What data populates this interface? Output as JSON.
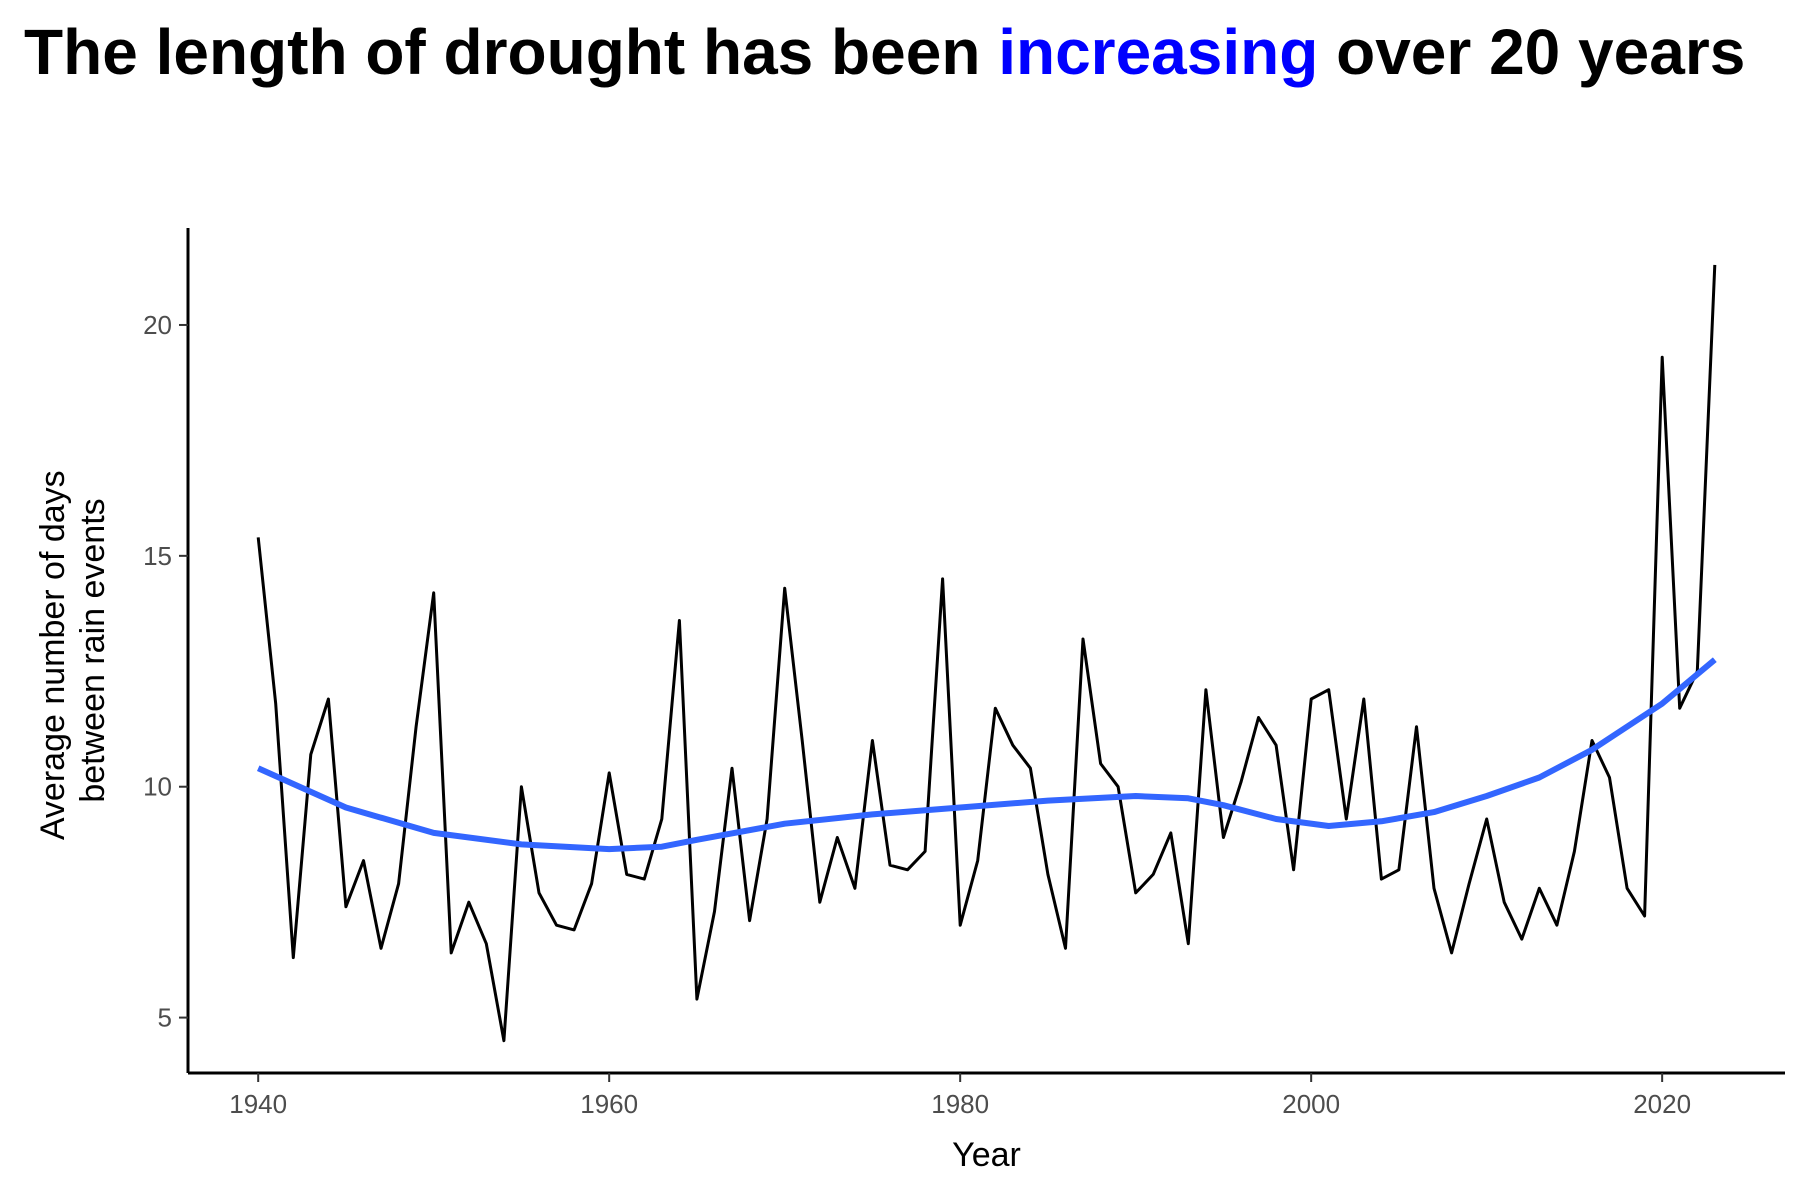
{
  "title": {
    "prefix": "The length of drought has been ",
    "highlight": "increasing",
    "suffix": " over 20 years",
    "highlight_color": "#0000ff"
  },
  "chart_data": {
    "type": "line",
    "xlabel": "Year",
    "ylabel_lines": [
      "Average number of days",
      "between rain events"
    ],
    "xlim": [
      1936,
      2027
    ],
    "ylim": [
      3.8,
      22.1
    ],
    "xticks": [
      1940,
      1960,
      1980,
      2000,
      2020
    ],
    "yticks": [
      5,
      10,
      15,
      20
    ],
    "grid": false,
    "legend": "none",
    "series": [
      {
        "color": "#000000",
        "x": [
          1940,
          1941,
          1942,
          1943,
          1944,
          1945,
          1946,
          1947,
          1948,
          1949,
          1950,
          1951,
          1952,
          1953,
          1954,
          1955,
          1956,
          1957,
          1958,
          1959,
          1960,
          1961,
          1962,
          1963,
          1964,
          1965,
          1966,
          1967,
          1968,
          1969,
          1970,
          1971,
          1972,
          1973,
          1974,
          1975,
          1976,
          1977,
          1978,
          1979,
          1980,
          1981,
          1982,
          1983,
          1984,
          1985,
          1986,
          1987,
          1988,
          1989,
          1990,
          1991,
          1992,
          1993,
          1994,
          1995,
          1996,
          1997,
          1998,
          1999,
          2000,
          2001,
          2002,
          2003,
          2004,
          2005,
          2006,
          2007,
          2008,
          2009,
          2010,
          2011,
          2012,
          2013,
          2014,
          2015,
          2016,
          2017,
          2018,
          2019,
          2020,
          2021,
          2022,
          2023
        ],
        "y": [
          15.4,
          11.8,
          6.3,
          10.7,
          11.9,
          7.4,
          8.4,
          6.5,
          7.9,
          11.3,
          14.2,
          6.4,
          7.5,
          6.6,
          4.5,
          10.0,
          7.7,
          7.0,
          6.9,
          7.9,
          10.3,
          8.1,
          8.0,
          9.3,
          13.6,
          5.4,
          7.3,
          10.4,
          7.1,
          9.3,
          14.3,
          11.0,
          7.5,
          8.9,
          7.8,
          11.0,
          8.3,
          8.2,
          8.6,
          14.5,
          7.0,
          8.4,
          11.7,
          10.9,
          10.4,
          8.1,
          6.5,
          13.2,
          10.5,
          10.0,
          7.7,
          8.1,
          9.0,
          6.6,
          12.1,
          8.9,
          10.1,
          11.5,
          10.9,
          8.2,
          11.9,
          12.1,
          9.3,
          11.9,
          8.0,
          8.2,
          11.3,
          7.8,
          6.4,
          7.9,
          9.3,
          7.5,
          6.7,
          7.8,
          7.0,
          8.6,
          11.0,
          10.2,
          7.8,
          7.2,
          19.3,
          11.7,
          12.5,
          21.3
        ]
      },
      {
        "color": "#3366ff",
        "x": [
          1940,
          1945,
          1950,
          1955,
          1960,
          1963,
          1965,
          1970,
          1975,
          1980,
          1985,
          1990,
          1993,
          1995,
          1998,
          2001,
          2004,
          2007,
          2010,
          2013,
          2016,
          2020,
          2023
        ],
        "y": [
          10.4,
          9.55,
          9.0,
          8.75,
          8.65,
          8.7,
          8.85,
          9.2,
          9.4,
          9.55,
          9.7,
          9.8,
          9.75,
          9.6,
          9.3,
          9.15,
          9.25,
          9.45,
          9.8,
          10.2,
          10.8,
          11.8,
          12.75
        ]
      }
    ]
  }
}
